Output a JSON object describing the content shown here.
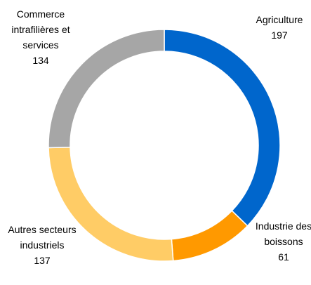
{
  "chart_data": {
    "type": "donut",
    "categories": [
      "Agriculture",
      "Industrie des boissons",
      "Autres secteurs industriels",
      "Commerce intrafilières et services"
    ],
    "values": [
      197,
      61,
      137,
      134
    ],
    "colors": [
      "#0066cc",
      "#ff9900",
      "#ffcc66",
      "#a6a6a6"
    ]
  }
}
